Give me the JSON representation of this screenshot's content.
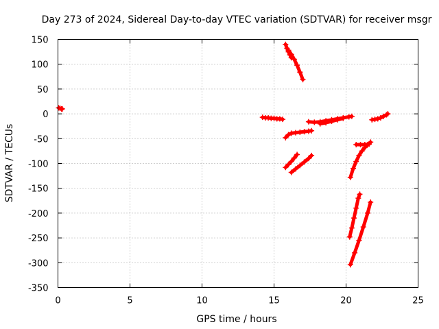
{
  "chart_data": {
    "type": "scatter",
    "title": "Day 273 of 2024, Sidereal Day-to-day VTEC variation (SDTVAR) for receiver msgr",
    "xlabel": "GPS time / hours",
    "ylabel": "SDTVAR / TECUs",
    "xlim": [
      0,
      25
    ],
    "ylim": [
      -350,
      150
    ],
    "xticks": [
      0,
      5,
      10,
      15,
      20,
      25
    ],
    "yticks": [
      150,
      100,
      50,
      0,
      -50,
      -100,
      -150,
      -200,
      -250,
      -300,
      -350
    ],
    "grid": true,
    "marker": "+",
    "color": "#ff0000",
    "series": [
      {
        "segments": [
          [
            [
              0.05,
              12
            ],
            [
              0.15,
              11
            ],
            [
              0.25,
              10
            ],
            [
              0.3,
              10
            ]
          ],
          [
            [
              14.2,
              -7
            ],
            [
              14.4,
              -8
            ],
            [
              14.6,
              -8
            ],
            [
              14.8,
              -9
            ],
            [
              15.0,
              -9
            ],
            [
              15.2,
              -10
            ],
            [
              15.4,
              -10
            ],
            [
              15.6,
              -11
            ]
          ],
          [
            [
              15.8,
              140
            ],
            [
              15.9,
              132
            ],
            [
              16.0,
              125
            ],
            [
              16.1,
              119
            ],
            [
              16.2,
              113
            ]
          ],
          [
            [
              16.0,
              128
            ],
            [
              16.2,
              120
            ],
            [
              16.4,
              110
            ],
            [
              16.6,
              98
            ],
            [
              16.8,
              84
            ],
            [
              17.0,
              69
            ]
          ],
          [
            [
              15.8,
              -48
            ],
            [
              16.0,
              -42
            ],
            [
              16.2,
              -39
            ],
            [
              16.5,
              -38
            ],
            [
              16.8,
              -37
            ],
            [
              17.1,
              -36
            ],
            [
              17.4,
              -35
            ],
            [
              17.6,
              -34
            ]
          ],
          [
            [
              15.8,
              -108
            ],
            [
              16.0,
              -102
            ],
            [
              16.2,
              -96
            ],
            [
              16.4,
              -89
            ],
            [
              16.6,
              -82
            ]
          ],
          [
            [
              16.2,
              -118
            ],
            [
              16.5,
              -111
            ],
            [
              16.8,
              -104
            ],
            [
              17.1,
              -97
            ],
            [
              17.4,
              -90
            ],
            [
              17.6,
              -84
            ]
          ],
          [
            [
              17.4,
              -16
            ],
            [
              17.8,
              -17
            ],
            [
              18.2,
              -16
            ],
            [
              18.6,
              -14
            ],
            [
              19.0,
              -12
            ],
            [
              19.4,
              -10
            ],
            [
              19.8,
              -8
            ],
            [
              20.2,
              -6
            ],
            [
              20.4,
              -5
            ]
          ],
          [
            [
              18.2,
              -20
            ],
            [
              18.6,
              -18
            ],
            [
              19.0,
              -15
            ],
            [
              19.4,
              -12
            ],
            [
              19.8,
              -9
            ]
          ],
          [
            [
              20.3,
              -128
            ],
            [
              20.5,
              -110
            ],
            [
              20.7,
              -96
            ],
            [
              20.9,
              -84
            ],
            [
              21.1,
              -75
            ],
            [
              21.3,
              -68
            ],
            [
              21.5,
              -62
            ],
            [
              21.7,
              -57
            ]
          ],
          [
            [
              20.7,
              -62
            ],
            [
              21.0,
              -62
            ],
            [
              21.3,
              -62
            ],
            [
              21.6,
              -61
            ]
          ],
          [
            [
              20.25,
              -248
            ],
            [
              20.4,
              -230
            ],
            [
              20.55,
              -210
            ],
            [
              20.7,
              -190
            ],
            [
              20.85,
              -170
            ],
            [
              20.95,
              -162
            ]
          ],
          [
            [
              20.3,
              -304
            ],
            [
              20.6,
              -280
            ],
            [
              20.9,
              -255
            ],
            [
              21.2,
              -228
            ],
            [
              21.5,
              -200
            ],
            [
              21.7,
              -178
            ]
          ],
          [
            [
              21.8,
              -12
            ],
            [
              22.0,
              -11
            ],
            [
              22.2,
              -10
            ],
            [
              22.4,
              -8
            ],
            [
              22.6,
              -5
            ],
            [
              22.8,
              -2
            ],
            [
              22.9,
              0
            ]
          ]
        ]
      }
    ]
  }
}
